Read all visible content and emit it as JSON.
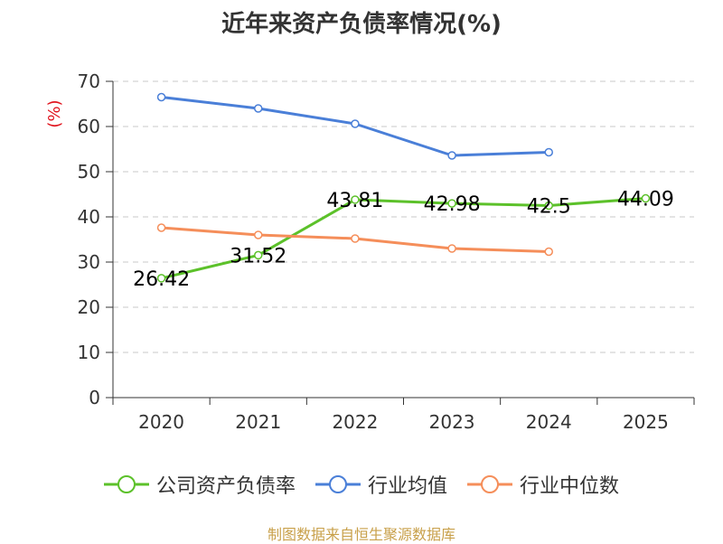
{
  "title": "近年来资产负债率情况(%)",
  "source": "制图数据来自恒生聚源数据库",
  "chart_data": {
    "type": "line",
    "title": "近年来资产负债率情况(%)",
    "ylabel": "(%)",
    "xlabel": "",
    "ylim": [
      0,
      70
    ],
    "yticks": [
      "0",
      "10",
      "20",
      "30",
      "40",
      "50",
      "60",
      "70"
    ],
    "categories": [
      "2020",
      "2021",
      "2022",
      "2023",
      "2024",
      "2025"
    ],
    "grid": true,
    "legend_position": "bottom",
    "series": [
      {
        "name": "公司资产负债率",
        "color": "#5cc12a",
        "values": [
          26.42,
          31.52,
          43.81,
          42.98,
          42.5,
          44.09
        ],
        "labels": [
          "26.42",
          "31.52",
          "43.81",
          "42.98",
          "42.5",
          "44.09"
        ]
      },
      {
        "name": "行业均值",
        "color": "#4a7fd8",
        "values": [
          66.5,
          64.0,
          60.6,
          53.6,
          54.3,
          null
        ]
      },
      {
        "name": "行业中位数",
        "color": "#f58e5a",
        "values": [
          37.6,
          36.0,
          35.2,
          33.0,
          32.3,
          null
        ]
      }
    ]
  }
}
